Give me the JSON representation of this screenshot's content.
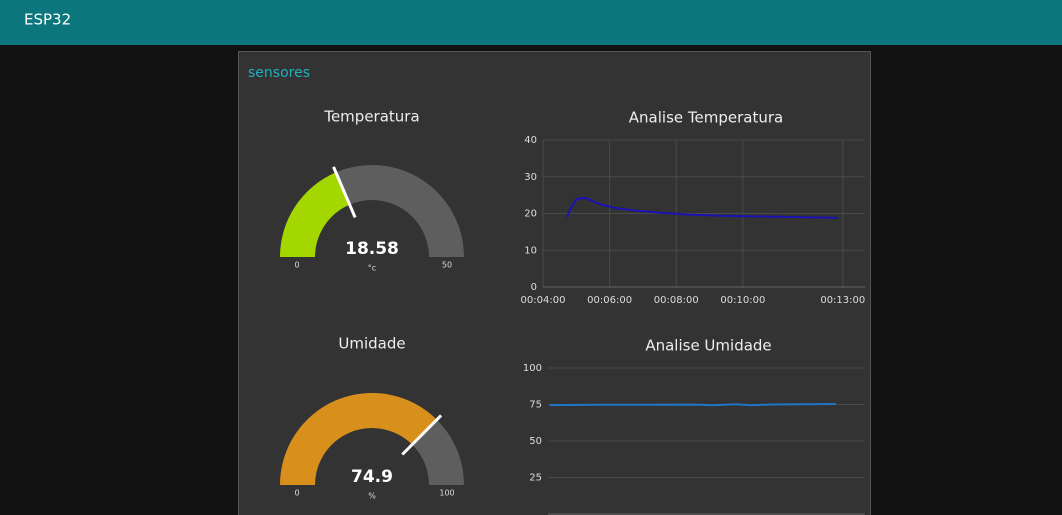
{
  "header": {
    "title": "ESP32"
  },
  "group": {
    "title": "sensores"
  },
  "gauges": [
    {
      "label": "Temperatura",
      "value": 18.58,
      "value_label": "18.58",
      "units": "°c",
      "min": 0,
      "max": 50,
      "color": "#a4d600"
    },
    {
      "label": "Umidade",
      "value": 74.9,
      "value_label": "74.9",
      "units": "%",
      "min": 0,
      "max": 100,
      "color": "#d98f1c"
    }
  ],
  "charts": [
    {
      "type": "line",
      "title": "Analise Temperatura",
      "color": "#1a12b5",
      "x": [
        283,
        292,
        301,
        316,
        328,
        343,
        370,
        406,
        451,
        505,
        559,
        631,
        703,
        771
      ],
      "values": [
        19,
        22,
        24,
        24.2,
        23.5,
        22.5,
        21.5,
        20.8,
        20.2,
        19.7,
        19.4,
        19.2,
        19,
        18.8
      ],
      "xlim": [
        240,
        820
      ],
      "ylim": [
        0,
        40
      ],
      "xticks": [
        {
          "value": 240,
          "label": "00:04:00"
        },
        {
          "value": 360,
          "label": "00:06:00"
        },
        {
          "value": 480,
          "label": "00:08:00"
        },
        {
          "value": 600,
          "label": "00:10:00"
        },
        {
          "value": 780,
          "label": "00:13:00"
        }
      ],
      "yticks": [
        0,
        10,
        20,
        30,
        40
      ],
      "grid": true
    },
    {
      "type": "line",
      "title": "Analise Umidade",
      "color": "#1f77c4",
      "x": [
        243,
        333,
        513,
        540,
        585,
        612,
        648,
        767
      ],
      "values": [
        74.6,
        74.8,
        74.9,
        74.5,
        75.2,
        74.5,
        75,
        75.3
      ],
      "xlim": [
        240,
        820
      ],
      "ylim": [
        0,
        100
      ],
      "yticks": [
        25,
        50,
        75,
        100
      ],
      "grid": true
    }
  ]
}
